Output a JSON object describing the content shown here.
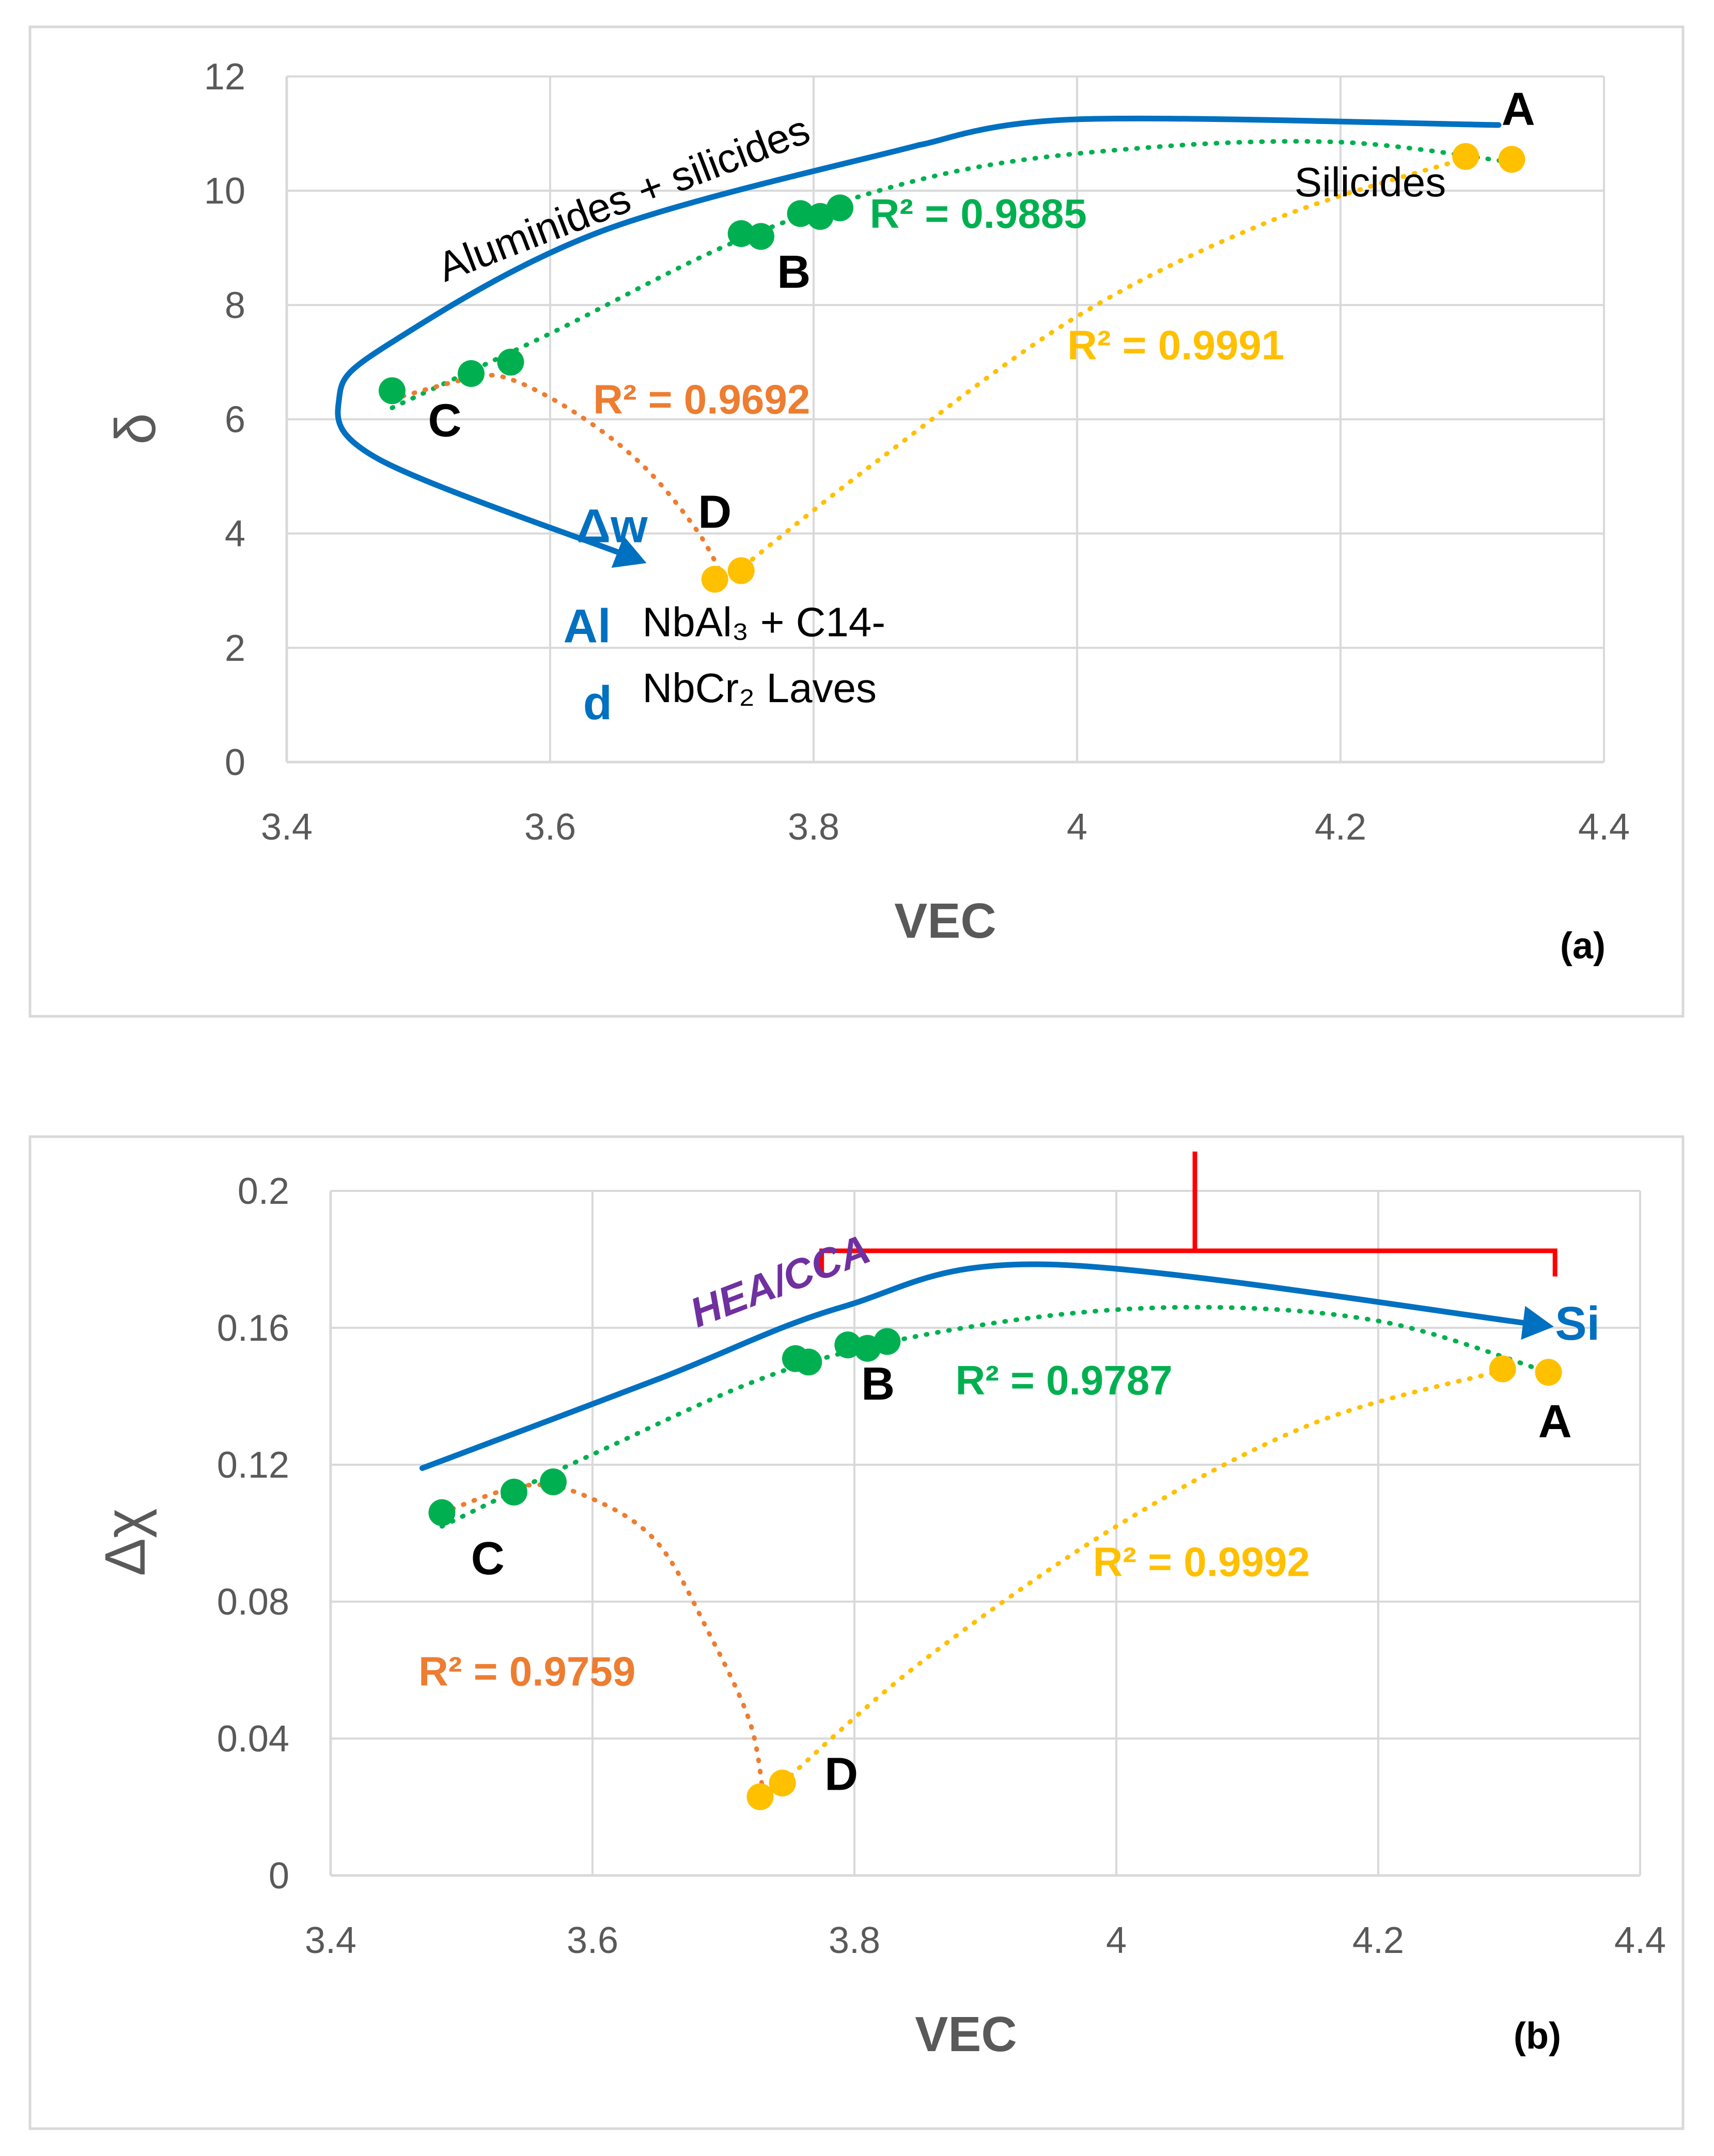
{
  "colors": {
    "blue": "#0070C0",
    "green": "#00B050",
    "orange": "#ED7D31",
    "yellow": "#FFC000",
    "red": "#FF0000",
    "purple": "#7030A0",
    "grid": "#D9D9D9",
    "axis_text": "#595959"
  },
  "chart_data": [
    {
      "type": "scatter",
      "panel_label": "(a)",
      "xlabel": "VEC",
      "ylabel": "δ",
      "xlim": [
        3.4,
        4.4
      ],
      "ylim": [
        0,
        12
      ],
      "x_ticks": [
        3.4,
        3.6,
        3.8,
        4,
        4.2,
        4.4
      ],
      "x_tick_labels": [
        "3.4",
        "3.6",
        "3.8",
        "4",
        "4.2",
        "4.4"
      ],
      "y_ticks": [
        0,
        2,
        4,
        6,
        8,
        10,
        12
      ],
      "y_tick_labels": [
        "0",
        "2",
        "4",
        "6",
        "8",
        "10",
        "12"
      ],
      "grid": true,
      "series": [
        {
          "name": "green",
          "color": "#00B050",
          "points": [
            [
              3.48,
              6.5
            ],
            [
              3.54,
              6.8
            ],
            [
              3.57,
              7.0
            ],
            [
              3.745,
              9.25
            ],
            [
              3.76,
              9.2
            ],
            [
              3.79,
              9.6
            ],
            [
              3.805,
              9.55
            ],
            [
              3.82,
              9.7
            ]
          ],
          "trend": [
            [
              3.48,
              6.2
            ],
            [
              3.6,
              7.5
            ],
            [
              3.75,
              9.2
            ],
            [
              3.9,
              10.3
            ],
            [
              4.05,
              10.75
            ],
            [
              4.2,
              10.85
            ],
            [
              4.33,
              10.5
            ]
          ],
          "r2": "R² = 0.9885",
          "r2_at": [
            3.925,
            9.35
          ]
        },
        {
          "name": "orange",
          "color": "#ED7D31",
          "points": [],
          "trend": [
            [
              3.48,
              6.35
            ],
            [
              3.54,
              6.72
            ],
            [
              3.57,
              6.7
            ],
            [
              3.62,
              6.1
            ],
            [
              3.67,
              5.2
            ],
            [
              3.71,
              4.1
            ],
            [
              3.73,
              3.3
            ]
          ],
          "r2": "R² = 0.9692",
          "r2_at": [
            3.715,
            6.1
          ]
        },
        {
          "name": "yellow",
          "color": "#FFC000",
          "points": [
            [
              3.725,
              3.2
            ],
            [
              3.745,
              3.35
            ],
            [
              4.295,
              10.6
            ],
            [
              4.33,
              10.55
            ]
          ],
          "trend": [
            [
              3.74,
              3.3
            ],
            [
              3.85,
              5.3
            ],
            [
              4.0,
              7.8
            ],
            [
              4.15,
              9.5
            ],
            [
              4.3,
              10.6
            ]
          ],
          "r2": "R² = 0.9991",
          "r2_at": [
            4.075,
            7.05
          ]
        }
      ],
      "point_labels": [
        {
          "text": "A",
          "at": [
            4.335,
            11.15
          ]
        },
        {
          "text": "B",
          "at": [
            3.785,
            8.3
          ]
        },
        {
          "text": "C",
          "at": [
            3.52,
            5.7
          ]
        },
        {
          "text": "D",
          "at": [
            3.725,
            4.1
          ]
        }
      ],
      "region_labels": [
        {
          "text": "Aluminides + silicides",
          "at": [
            3.52,
            8.4
          ],
          "angle": -21
        },
        {
          "text": "Silicides",
          "at": [
            4.165,
            9.9
          ]
        }
      ],
      "blue_arrow_path": [
        [
          3.88,
          10.8
        ],
        [
          4.0,
          11.25
        ],
        [
          4.32,
          11.15
        ]
      ],
      "blue_curve_lower": [
        [
          3.88,
          10.8
        ],
        [
          3.64,
          9.3
        ],
        [
          3.48,
          7.35
        ],
        [
          3.44,
          6.4
        ],
        [
          3.47,
          5.3
        ],
        [
          3.66,
          3.6
        ]
      ],
      "arrow_label_delta_w": "Δw",
      "arrow_label_al": "Al",
      "arrow_label_d": "d",
      "phase_label_line1": "NbAl₃ + C14-",
      "phase_label_line2": "NbCr₂ Laves"
    },
    {
      "type": "scatter",
      "panel_label": "(b)",
      "xlabel": "VEC",
      "ylabel": "Δχ",
      "xlim": [
        3.4,
        4.4
      ],
      "ylim": [
        0,
        0.2
      ],
      "x_ticks": [
        3.4,
        3.6,
        3.8,
        4,
        4.2,
        4.4
      ],
      "x_tick_labels": [
        "3.4",
        "3.6",
        "3.8",
        "4",
        "4.2",
        "4.4"
      ],
      "y_ticks": [
        0,
        0.04,
        0.08,
        0.12,
        0.16,
        0.2
      ],
      "y_tick_labels": [
        "0",
        "0.04",
        "0.08",
        "0.12",
        "0.16",
        "0.2"
      ],
      "grid": true,
      "series": [
        {
          "name": "green",
          "color": "#00B050",
          "points": [
            [
              3.485,
              0.106
            ],
            [
              3.54,
              0.112
            ],
            [
              3.57,
              0.115
            ],
            [
              3.755,
              0.151
            ],
            [
              3.765,
              0.15
            ],
            [
              3.795,
              0.155
            ],
            [
              3.81,
              0.154
            ],
            [
              3.825,
              0.156
            ]
          ],
          "trend": [
            [
              3.485,
              0.102
            ],
            [
              3.6,
              0.123
            ],
            [
              3.75,
              0.148
            ],
            [
              3.9,
              0.161
            ],
            [
              4.05,
              0.166
            ],
            [
              4.2,
              0.162
            ],
            [
              4.33,
              0.147
            ]
          ],
          "r2": "R² = 0.9787",
          "r2_at": [
            3.96,
            0.1405
          ]
        },
        {
          "name": "orange",
          "color": "#ED7D31",
          "points": [],
          "trend": [
            [
              3.485,
              0.106
            ],
            [
              3.55,
              0.114
            ],
            [
              3.6,
              0.11
            ],
            [
              3.65,
              0.097
            ],
            [
              3.69,
              0.07
            ],
            [
              3.72,
              0.045
            ],
            [
              3.73,
              0.025
            ]
          ],
          "r2": "R² = 0.9759",
          "r2_at": [
            3.55,
            0.0555
          ]
        },
        {
          "name": "yellow",
          "color": "#FFC000",
          "points": [
            [
              3.728,
              0.023
            ],
            [
              3.745,
              0.027
            ],
            [
              4.295,
              0.148
            ],
            [
              4.33,
              0.147
            ]
          ],
          "trend": [
            [
              3.745,
              0.027
            ],
            [
              3.85,
              0.062
            ],
            [
              4.0,
              0.102
            ],
            [
              4.15,
              0.132
            ],
            [
              4.3,
              0.148
            ]
          ],
          "r2": "R² = 0.9992",
          "r2_at": [
            4.065,
            0.0875
          ]
        }
      ],
      "point_labels": [
        {
          "text": "A",
          "at": [
            4.335,
            0.128
          ]
        },
        {
          "text": "B",
          "at": [
            3.818,
            0.139
          ]
        },
        {
          "text": "C",
          "at": [
            3.52,
            0.088
          ]
        },
        {
          "text": "D",
          "at": [
            3.79,
            0.025
          ]
        }
      ],
      "region_labels": [
        {
          "text": "HEA/CCA",
          "at": [
            3.68,
            0.16
          ],
          "angle": -21
        }
      ],
      "blue_arrow_path": [
        [
          3.47,
          0.119
        ],
        [
          3.65,
          0.145
        ],
        [
          3.79,
          0.166
        ],
        [
          3.95,
          0.1785
        ],
        [
          4.32,
          0.161
        ]
      ],
      "arrow_label_si": "Si",
      "red_bracket": {
        "left_x": 3.775,
        "right_x": 4.335,
        "top_y": 0.1825,
        "bottom_y": 0.175,
        "stem_x": 4.06,
        "stem_top": 0.2115
      }
    }
  ]
}
